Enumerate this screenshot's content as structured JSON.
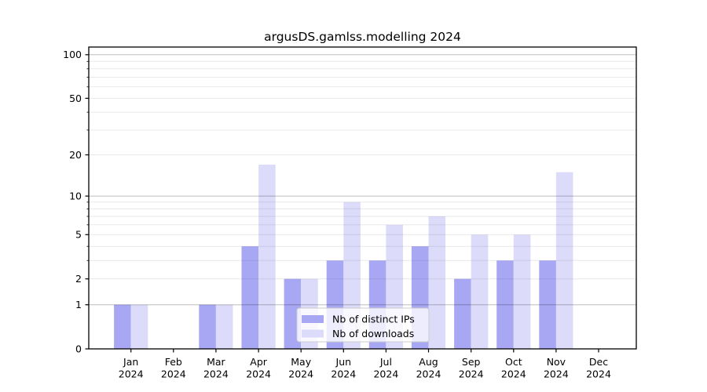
{
  "title": "argusDS.gamlss.modelling 2024",
  "legend": {
    "items": [
      {
        "label": "Nb of distinct IPs",
        "color": "#a7a7f3"
      },
      {
        "label": "Nb of downloads",
        "color": "#dcdcfa"
      }
    ]
  },
  "y_axis": {
    "tick_labels": [
      "0",
      "1",
      "2",
      "5",
      "10",
      "20",
      "50",
      "100"
    ]
  },
  "x_axis": {
    "months": [
      "Jan",
      "Feb",
      "Mar",
      "Apr",
      "May",
      "Jun",
      "Jul",
      "Aug",
      "Sep",
      "Oct",
      "Nov",
      "Dec"
    ],
    "year": "2024"
  },
  "chart_data": {
    "type": "bar",
    "title": "argusDS.gamlss.modelling 2024",
    "categories": [
      "Jan 2024",
      "Feb 2024",
      "Mar 2024",
      "Apr 2024",
      "May 2024",
      "Jun 2024",
      "Jul 2024",
      "Aug 2024",
      "Sep 2024",
      "Oct 2024",
      "Nov 2024",
      "Dec 2024"
    ],
    "series": [
      {
        "name": "Nb of distinct IPs",
        "color": "#a7a7f3",
        "values": [
          1,
          0,
          1,
          4,
          2,
          3,
          3,
          4,
          2,
          3,
          3,
          0
        ]
      },
      {
        "name": "Nb of downloads",
        "color": "#dcdcfa",
        "values": [
          1,
          0,
          1,
          17,
          2,
          9,
          6,
          7,
          5,
          5,
          15,
          0
        ]
      }
    ],
    "xlabel": "",
    "ylabel": "",
    "y_scale": "log1p",
    "ylim": [
      0,
      113
    ],
    "y_major_ticks": [
      0,
      1,
      2,
      5,
      10,
      20,
      50,
      100
    ],
    "y_major_gridlines": [
      1,
      10,
      100
    ],
    "y_minor_gridlines": [
      2,
      3,
      4,
      5,
      6,
      7,
      8,
      9,
      20,
      30,
      40,
      50,
      60,
      70,
      80,
      90
    ],
    "y_minor_tickmarks": [
      3,
      4,
      6,
      7,
      8,
      9,
      30,
      40,
      60,
      70,
      80,
      90
    ],
    "grid": "horizontal",
    "legend_position": "lower center inside"
  }
}
